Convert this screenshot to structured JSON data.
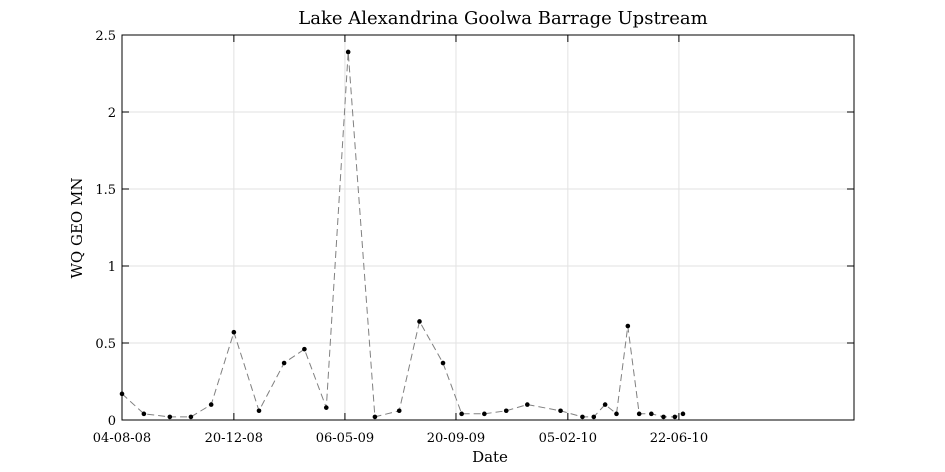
{
  "chart_data": {
    "type": "line",
    "title": "Lake Alexandrina Goolwa Barrage Upstream",
    "xlabel": "Date",
    "ylabel": "WQ GEO MN",
    "x_is_date": true,
    "xlim": [
      "2008-08-04",
      "2011-01-24"
    ],
    "ylim": [
      0,
      2.5
    ],
    "x_ticks": [
      {
        "date": "2008-08-04",
        "label": "04-08-08"
      },
      {
        "date": "2008-12-20",
        "label": "20-12-08"
      },
      {
        "date": "2009-05-06",
        "label": "06-05-09"
      },
      {
        "date": "2009-09-20",
        "label": "20-09-09"
      },
      {
        "date": "2010-02-05",
        "label": "05-02-10"
      },
      {
        "date": "2010-06-22",
        "label": "22-06-10"
      }
    ],
    "y_ticks": [
      {
        "value": 0,
        "label": "0"
      },
      {
        "value": 0.5,
        "label": "0.5"
      },
      {
        "value": 1,
        "label": "1"
      },
      {
        "value": 1.5,
        "label": "1.5"
      },
      {
        "value": 2,
        "label": "2"
      },
      {
        "value": 2.5,
        "label": "2.5"
      }
    ],
    "grid": true,
    "series": [
      {
        "style": "dashed line with dot markers",
        "color": "#808080",
        "marker_color": "#000000",
        "points": [
          {
            "x": "2008-08-04",
            "y": 0.17
          },
          {
            "x": "2008-08-31",
            "y": 0.04
          },
          {
            "x": "2008-10-02",
            "y": 0.02
          },
          {
            "x": "2008-10-28",
            "y": 0.02
          },
          {
            "x": "2008-11-22",
            "y": 0.1
          },
          {
            "x": "2008-12-20",
            "y": 0.57
          },
          {
            "x": "2009-01-20",
            "y": 0.06
          },
          {
            "x": "2009-02-20",
            "y": 0.37
          },
          {
            "x": "2009-03-17",
            "y": 0.46
          },
          {
            "x": "2009-04-13",
            "y": 0.08
          },
          {
            "x": "2009-05-10",
            "y": 2.39
          },
          {
            "x": "2009-06-12",
            "y": 0.02
          },
          {
            "x": "2009-07-12",
            "y": 0.06
          },
          {
            "x": "2009-08-06",
            "y": 0.64
          },
          {
            "x": "2009-09-04",
            "y": 0.37
          },
          {
            "x": "2009-09-27",
            "y": 0.04
          },
          {
            "x": "2009-10-25",
            "y": 0.04
          },
          {
            "x": "2009-11-21",
            "y": 0.06
          },
          {
            "x": "2009-12-17",
            "y": 0.1
          },
          {
            "x": "2010-01-27",
            "y": 0.06
          },
          {
            "x": "2010-02-23",
            "y": 0.02
          },
          {
            "x": "2010-03-09",
            "y": 0.02
          },
          {
            "x": "2010-03-23",
            "y": 0.1
          },
          {
            "x": "2010-04-06",
            "y": 0.04
          },
          {
            "x": "2010-04-20",
            "y": 0.61
          },
          {
            "x": "2010-05-04",
            "y": 0.04
          },
          {
            "x": "2010-05-19",
            "y": 0.04
          },
          {
            "x": "2010-06-03",
            "y": 0.02
          },
          {
            "x": "2010-06-17",
            "y": 0.02
          },
          {
            "x": "2010-06-27",
            "y": 0.04
          }
        ]
      }
    ]
  }
}
